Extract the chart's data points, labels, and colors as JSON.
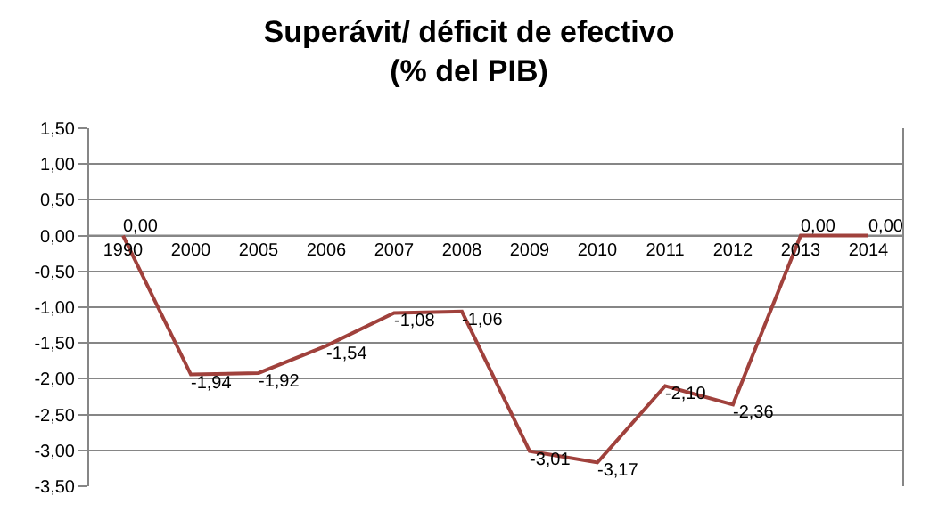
{
  "chart_data": {
    "type": "line",
    "title": "Superávit/ déficit de efectivo\n(% del PIB)",
    "categories": [
      "1990",
      "2000",
      "2005",
      "2006",
      "2007",
      "2008",
      "2009",
      "2010",
      "2011",
      "2012",
      "2013",
      "2014"
    ],
    "series": [
      {
        "color": "#a0413c",
        "values": [
          0.0,
          -1.94,
          -1.92,
          -1.54,
          -1.08,
          -1.06,
          -3.01,
          -3.17,
          -2.1,
          -2.36,
          0.0,
          0.0
        ],
        "value_labels": [
          "0,00",
          "-1,94",
          "-1,92",
          "-1,54",
          "-1,08",
          "-1,06",
          "-3,01",
          "-3,17",
          "-2,10",
          "-2,36",
          "0,00",
          "0,00"
        ]
      }
    ],
    "ylim": [
      -3.5,
      1.5
    ],
    "yticks": [
      {
        "value": 1.5,
        "label": "1,50"
      },
      {
        "value": 1.0,
        "label": "1,00"
      },
      {
        "value": 0.5,
        "label": "0,50"
      },
      {
        "value": 0.0,
        "label": "0,00"
      },
      {
        "value": -0.5,
        "label": "-0,50"
      },
      {
        "value": -1.0,
        "label": "-1,00"
      },
      {
        "value": -1.5,
        "label": "-1,50"
      },
      {
        "value": -2.0,
        "label": "-2,00"
      },
      {
        "value": -2.5,
        "label": "-2,50"
      },
      {
        "value": -3.0,
        "label": "-3,00"
      },
      {
        "value": -3.5,
        "label": "-3,50"
      }
    ],
    "grid": "y",
    "legend": false,
    "marker": "none",
    "line_style": "solid"
  }
}
